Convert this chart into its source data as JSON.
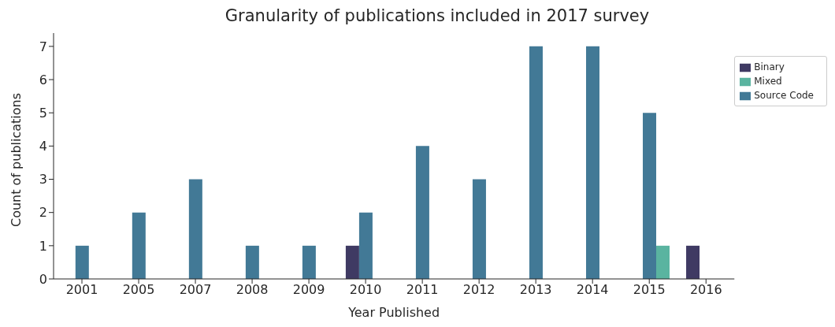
{
  "chart_data": {
    "type": "bar",
    "title": "Granularity of publications included in 2017 survey",
    "xlabel": "Year Published",
    "ylabel": "Count of publications",
    "categories": [
      "2001",
      "2005",
      "2007",
      "2008",
      "2009",
      "2010",
      "2011",
      "2012",
      "2013",
      "2014",
      "2015",
      "2016"
    ],
    "series": [
      {
        "name": "Binary",
        "color": "#3f3a63",
        "values": [
          null,
          null,
          null,
          null,
          null,
          1,
          null,
          null,
          null,
          null,
          null,
          1
        ]
      },
      {
        "name": "Source Code",
        "color": "#427996",
        "values": [
          1,
          2,
          3,
          1,
          1,
          2,
          4,
          3,
          7,
          7,
          5,
          null
        ]
      },
      {
        "name": "Mixed",
        "color": "#5ab4a0",
        "values": [
          null,
          null,
          null,
          null,
          null,
          null,
          null,
          null,
          null,
          null,
          1,
          null
        ]
      }
    ],
    "ylim": [
      0,
      7.4
    ],
    "yticks": [
      0,
      1,
      2,
      3,
      4,
      5,
      6,
      7
    ],
    "grid": false,
    "legend": "top right"
  }
}
